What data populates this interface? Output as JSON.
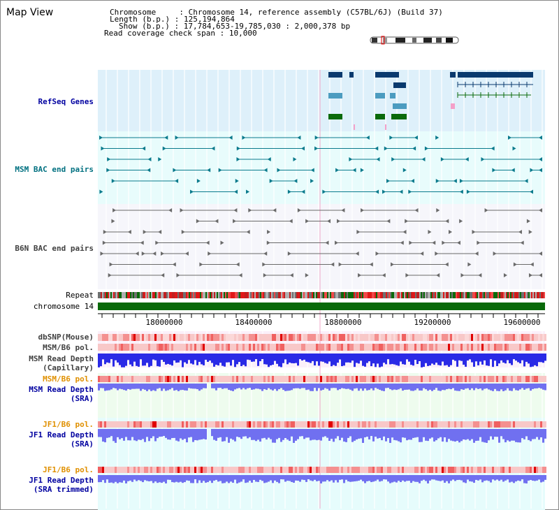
{
  "title": "Map View",
  "header": {
    "chromosome_label": "Chromosome",
    "chromosome_value": "Chromosome 14, reference assembly (C57BL/6J) (Build 37)",
    "length_label": "Length (b.p.)",
    "length_value": "125,194,864",
    "show_label": "Show (b.p.)",
    "show_value": "17,784,653-19,785,030 : 2,000,378 bp",
    "coverage_label": "Read coverage check span",
    "coverage_value": "10,000"
  },
  "tracks": {
    "refseq": "RefSeq Genes",
    "msm_bac": "MSM BAC end pairs",
    "b6n_bac": "B6N BAC end pairs",
    "repeat": "Repeat",
    "chromosome": "chromosome 14",
    "dbsnp": "dbSNP(Mouse)",
    "msm_b6_pol": "MSM/B6 pol.",
    "msm_depth_cap": "MSM Read Depth\n(Capillary)",
    "msm_b6_pol_sra": "MSM/B6 pol.",
    "msm_depth_sra": "MSM Read Depth\n(SRA)",
    "jf1_b6_pol": "JF1/B6 pol.",
    "jf1_depth_sra": "JF1 Read Depth\n(SRA)",
    "jf1_b6_pol_trim": "JF1/B6 pol.",
    "jf1_depth_trim": "JF1 Read Depth\n(SRA trimmed)"
  },
  "axis": {
    "ticks": [
      "18000000",
      "18400000",
      "18800000",
      "19200000",
      "19600000"
    ]
  },
  "colors": {
    "refseq_bg": "#def0fa",
    "msm_bac_bg": "#e8fcfc",
    "b6n_bg": "#f6f6fb",
    "lower_bg": "#e0fcfc",
    "gene_navy": "#0a3a6e",
    "gene_light": "#4c9cc0",
    "gene_green": "#0a6a0a",
    "chromosome_green": "#0a6a0a",
    "msm_bac_line": "#0a7a8c",
    "b6n_line": "#6a6a6a",
    "depth_capillary": "#2a2ae6",
    "depth_sra": "#7070f0",
    "label_blue": "#0000a0",
    "label_orange": "#e09000",
    "label_grey": "#404040"
  }
}
